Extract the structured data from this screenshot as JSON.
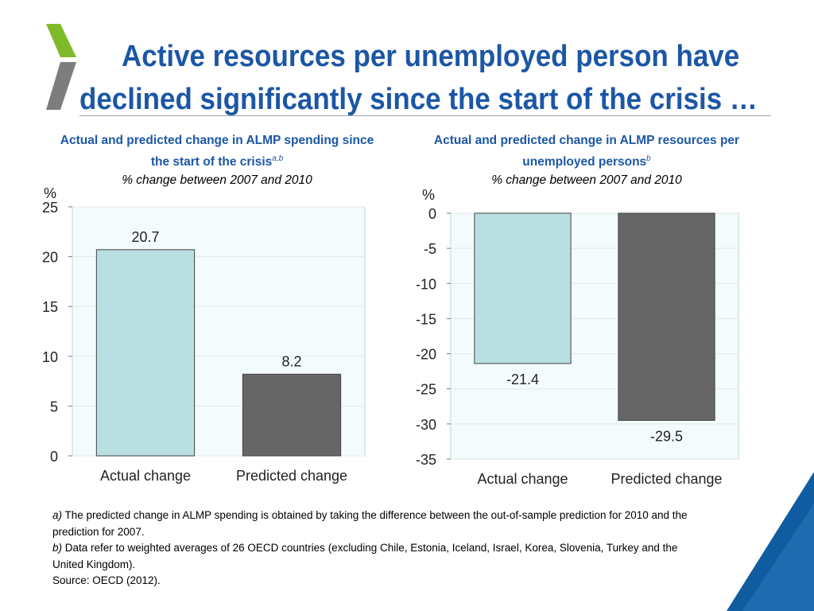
{
  "slide": {
    "title_line1": "Active resources per unemployed person have",
    "title_line2": "declined significantly since the start of the crisis …"
  },
  "colors": {
    "title": "#1c57a5",
    "actual_bar": "#b9dfe3",
    "predicted_bar": "#666666",
    "plot_bg": "#f4fbfd",
    "logo_green": "#7fba2a",
    "logo_grey": "#7b7d7f",
    "corner_blue": "#0f5ca0"
  },
  "footnotes": {
    "a_marker": "a)",
    "a_text": " The predicted change in ALMP spending is obtained by taking the difference between the out-of-sample prediction for 2010 and the prediction for 2007.",
    "b_marker": "b)",
    "b_text": " Data refer to weighted averages of 26 OECD countries (excluding Chile, Estonia, Iceland, Israel, Korea, Slovenia, Turkey and the United Kingdom).",
    "source": "Source: OECD (2012)."
  },
  "chart_data": [
    {
      "type": "bar",
      "title": "Actual and predicted change in ALMP spending since the start of the crisis",
      "title_line1": "Actual and predicted change in ALMP spending since",
      "title_line2": "the start of the crisis",
      "title_sup": "a,b",
      "subtitle": "% change between 2007 and 2010",
      "ylabel": "%",
      "categories": [
        "Actual change",
        "Predicted change"
      ],
      "values": [
        20.7,
        8.2
      ],
      "value_labels": [
        "20.7",
        "8.2"
      ],
      "ylim": [
        0,
        25
      ],
      "yticks": [
        0,
        5,
        10,
        15,
        20,
        25
      ],
      "grid": true,
      "legend": "none"
    },
    {
      "type": "bar",
      "title": "Actual and predicted change in ALMP resources per unemployed persons",
      "title_line1": "Actual and predicted change in ALMP resources per",
      "title_line2": "unemployed persons",
      "title_sup": "b",
      "subtitle": "% change between 2007 and 2010",
      "ylabel": "%",
      "categories": [
        "Actual change",
        "Predicted change"
      ],
      "values": [
        -21.4,
        -29.5
      ],
      "value_labels": [
        "-21.4",
        "-29.5"
      ],
      "ylim": [
        -35,
        0
      ],
      "yticks": [
        0,
        -5,
        -10,
        -15,
        -20,
        -25,
        -30,
        -35
      ],
      "grid": true,
      "legend": "none"
    }
  ]
}
